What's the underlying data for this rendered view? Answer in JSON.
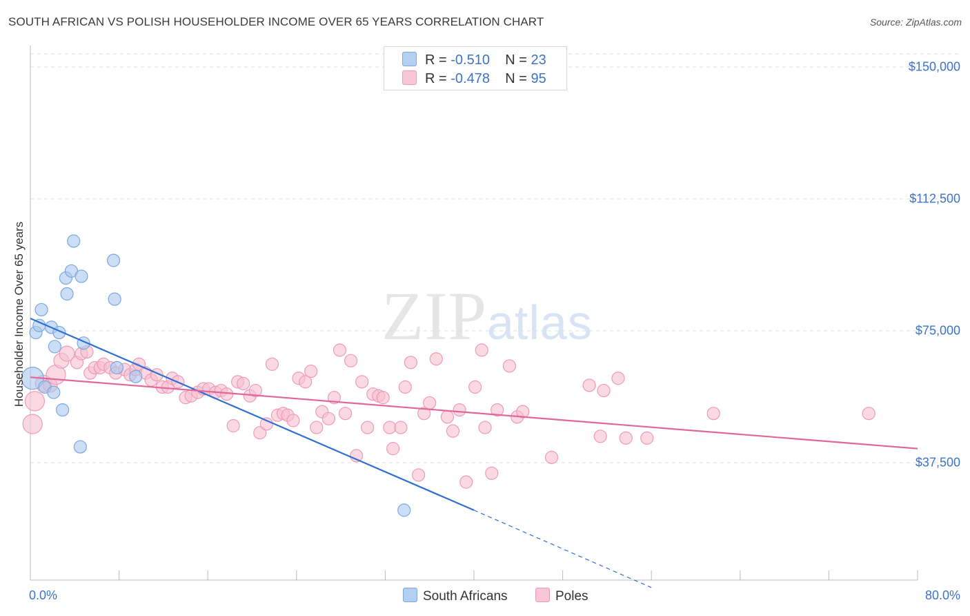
{
  "title": "SOUTH AFRICAN VS POLISH HOUSEHOLDER INCOME OVER 65 YEARS CORRELATION CHART",
  "source": "Source: ZipAtlas.com",
  "watermark": {
    "zip": "ZIP",
    "atlas": "atlas"
  },
  "legend": {
    "r_label": "R =",
    "n_label": "N =",
    "series": [
      {
        "name": "South Africans",
        "r": "-0.510",
        "n": "23"
      },
      {
        "name": "Poles",
        "r": "-0.478",
        "n": "95"
      }
    ]
  },
  "colors": {
    "blue_fill": "#a9c8ef",
    "blue_stroke": "#7ba7de",
    "blue_line": "#2f6fd1",
    "pink_fill": "#f6bfd0",
    "pink_stroke": "#ee9ab6",
    "pink_line": "#e0679a",
    "grid": "#dedede",
    "tick_text": "#3b73c9"
  },
  "chart_data": {
    "type": "scatter",
    "title": "SOUTH AFRICAN VS POLISH HOUSEHOLDER INCOME OVER 65 YEARS CORRELATION CHART",
    "xlabel": "",
    "ylabel": "Householder Income Over 65 years",
    "xlim": [
      0,
      80
    ],
    "ylim": [
      0,
      150000
    ],
    "x_tick_labels": [
      "0.0%",
      "80.0%"
    ],
    "y_ticks": [
      37500,
      75000,
      112500,
      150000
    ],
    "y_tick_labels": [
      "$37,500",
      "$75,000",
      "$112,500",
      "$150,000"
    ],
    "grid": true,
    "legend_position": "top-center",
    "series": [
      {
        "name": "South Africans",
        "points": [
          [
            0.2,
            61500,
            16
          ],
          [
            0.5,
            74500,
            9
          ],
          [
            0.8,
            76500,
            9
          ],
          [
            1.0,
            81000,
            9
          ],
          [
            1.3,
            59000,
            9
          ],
          [
            1.9,
            76000,
            9
          ],
          [
            2.1,
            57500,
            9
          ],
          [
            2.2,
            70500,
            9
          ],
          [
            2.6,
            74500,
            9
          ],
          [
            2.9,
            52500,
            9
          ],
          [
            3.2,
            90000,
            9
          ],
          [
            3.3,
            85500,
            9
          ],
          [
            3.7,
            92000,
            9
          ],
          [
            3.9,
            100500,
            9
          ],
          [
            4.5,
            42000,
            9
          ],
          [
            4.6,
            90500,
            9
          ],
          [
            4.8,
            71500,
            9
          ],
          [
            7.5,
            95000,
            9
          ],
          [
            7.6,
            84000,
            9
          ],
          [
            7.8,
            64500,
            9
          ],
          [
            9.5,
            62000,
            9
          ],
          [
            33.7,
            24000,
            9
          ]
        ],
        "trend": {
          "x": [
            0,
            40
          ],
          "y": [
            78500,
            24000
          ],
          "dashed_to": [
            56,
            2000
          ]
        }
      },
      {
        "name": "Poles",
        "points": [
          [
            0.2,
            48500,
            14
          ],
          [
            0.4,
            55000,
            14
          ],
          [
            1.2,
            60000,
            12
          ],
          [
            1.8,
            59500,
            10
          ],
          [
            2.3,
            62500,
            14
          ],
          [
            2.8,
            66500,
            11
          ],
          [
            3.3,
            68500,
            11
          ],
          [
            4.2,
            66000,
            9
          ],
          [
            4.6,
            68500,
            9
          ],
          [
            5.1,
            69000,
            9
          ],
          [
            5.4,
            63000,
            9
          ],
          [
            5.8,
            64500,
            9
          ],
          [
            6.3,
            64500,
            9
          ],
          [
            6.6,
            65500,
            9
          ],
          [
            7.2,
            64500,
            9
          ],
          [
            7.7,
            63000,
            9
          ],
          [
            8.5,
            64000,
            9
          ],
          [
            9.0,
            62500,
            9
          ],
          [
            9.5,
            64000,
            9
          ],
          [
            9.8,
            65500,
            9
          ],
          [
            10.4,
            63000,
            9
          ],
          [
            10.9,
            61000,
            9
          ],
          [
            11.4,
            62500,
            9
          ],
          [
            11.9,
            59000,
            9
          ],
          [
            12.4,
            59000,
            9
          ],
          [
            12.8,
            61500,
            9
          ],
          [
            13.3,
            60500,
            9
          ],
          [
            14.0,
            56000,
            9
          ],
          [
            14.5,
            56500,
            9
          ],
          [
            15.1,
            57500,
            9
          ],
          [
            15.6,
            58500,
            9
          ],
          [
            16.1,
            58500,
            9
          ],
          [
            16.7,
            57500,
            9
          ],
          [
            17.2,
            58000,
            9
          ],
          [
            17.7,
            57000,
            9
          ],
          [
            18.3,
            48000,
            9
          ],
          [
            18.7,
            60500,
            9
          ],
          [
            19.2,
            60000,
            9
          ],
          [
            19.8,
            56500,
            9
          ],
          [
            20.3,
            58000,
            9
          ],
          [
            20.7,
            46000,
            9
          ],
          [
            21.3,
            48500,
            9
          ],
          [
            21.8,
            65500,
            9
          ],
          [
            22.3,
            51000,
            9
          ],
          [
            22.8,
            51500,
            9
          ],
          [
            23.2,
            51000,
            9
          ],
          [
            23.7,
            49500,
            9
          ],
          [
            24.2,
            61500,
            9
          ],
          [
            24.8,
            60500,
            9
          ],
          [
            25.3,
            63500,
            9
          ],
          [
            25.8,
            47500,
            9
          ],
          [
            26.3,
            52000,
            9
          ],
          [
            26.9,
            50000,
            9
          ],
          [
            27.4,
            56000,
            9
          ],
          [
            27.9,
            69500,
            9
          ],
          [
            28.4,
            51500,
            9
          ],
          [
            28.9,
            66500,
            9
          ],
          [
            29.4,
            39500,
            9
          ],
          [
            29.9,
            60500,
            9
          ],
          [
            30.4,
            47500,
            9
          ],
          [
            30.9,
            57000,
            9
          ],
          [
            31.4,
            56500,
            9
          ],
          [
            31.8,
            56000,
            9
          ],
          [
            32.4,
            47500,
            9
          ],
          [
            32.7,
            41500,
            9
          ],
          [
            33.4,
            47500,
            9
          ],
          [
            33.8,
            59000,
            9
          ],
          [
            34.3,
            66000,
            9
          ],
          [
            35.0,
            34000,
            9
          ],
          [
            35.5,
            51500,
            9
          ],
          [
            36.0,
            54500,
            9
          ],
          [
            36.6,
            67000,
            9
          ],
          [
            37.6,
            50500,
            9
          ],
          [
            38.1,
            46500,
            9
          ],
          [
            38.7,
            52500,
            9
          ],
          [
            39.3,
            32000,
            9
          ],
          [
            40.1,
            59000,
            9
          ],
          [
            40.7,
            69500,
            9
          ],
          [
            41.0,
            47500,
            9
          ],
          [
            41.6,
            34500,
            9
          ],
          [
            42.1,
            52500,
            9
          ],
          [
            43.2,
            65000,
            9
          ],
          [
            43.9,
            50500,
            9
          ],
          [
            44.4,
            52000,
            9
          ],
          [
            47.0,
            39000,
            9
          ],
          [
            50.4,
            59500,
            9
          ],
          [
            51.7,
            58000,
            9
          ],
          [
            51.4,
            45000,
            9
          ],
          [
            53.0,
            61500,
            9
          ],
          [
            53.7,
            44500,
            9
          ],
          [
            55.6,
            44500,
            9
          ],
          [
            61.6,
            51500,
            9
          ],
          [
            75.6,
            51500,
            9
          ]
        ],
        "trend": {
          "x": [
            0,
            80
          ],
          "y": [
            61800,
            41500
          ]
        }
      }
    ]
  }
}
